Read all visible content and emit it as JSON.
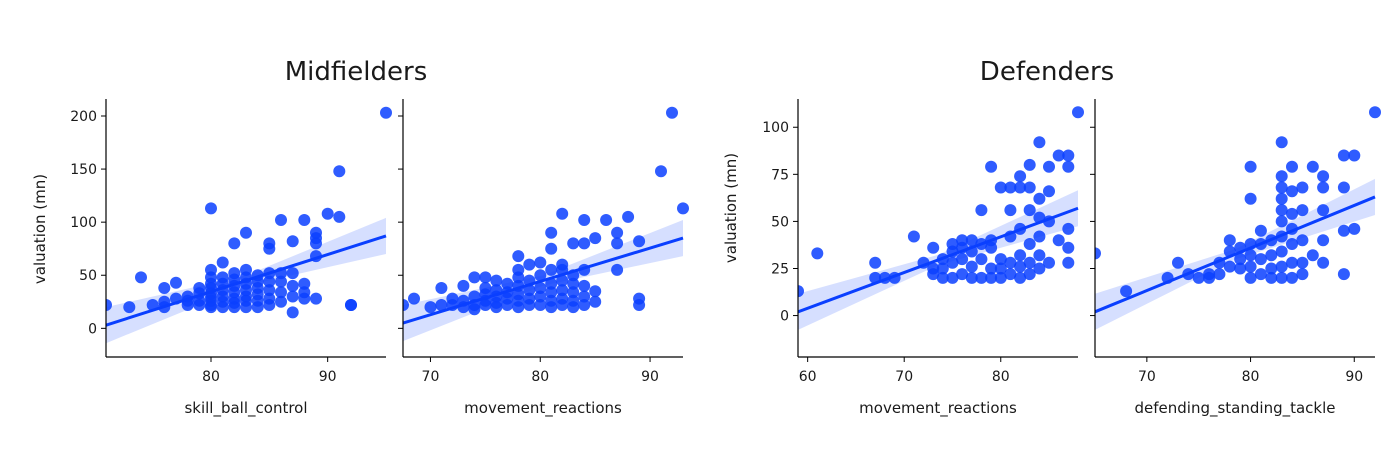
{
  "figure": {
    "groups": [
      {
        "title": "Midfielders",
        "ylabel": "valuation (mn)"
      },
      {
        "title": "Defenders",
        "ylabel": "valuation (mn)"
      }
    ]
  },
  "colors": {
    "point": "#0a3fff",
    "line": "#0a3fff",
    "band": "#c8d4ff"
  },
  "chart_data": [
    {
      "type": "scatter",
      "group": "Midfielders",
      "xlabel": "skill_ball_control",
      "ylabel": "valuation (mn)",
      "xlim": [
        71,
        95
      ],
      "ylim": [
        -27,
        216
      ],
      "xticks": [
        80,
        90
      ],
      "yticks": [
        0,
        50,
        100,
        150,
        200
      ],
      "regression": {
        "x": [
          71,
          95
        ],
        "y": [
          3,
          87
        ]
      },
      "points": [
        [
          71,
          22
        ],
        [
          73,
          20
        ],
        [
          74,
          48
        ],
        [
          75,
          22
        ],
        [
          76,
          20
        ],
        [
          76,
          25
        ],
        [
          76,
          38
        ],
        [
          77,
          28
        ],
        [
          77,
          43
        ],
        [
          78,
          22
        ],
        [
          78,
          26
        ],
        [
          78,
          30
        ],
        [
          79,
          22
        ],
        [
          79,
          26
        ],
        [
          79,
          33
        ],
        [
          79,
          38
        ],
        [
          80,
          20
        ],
        [
          80,
          22
        ],
        [
          80,
          26
        ],
        [
          80,
          29
        ],
        [
          80,
          33
        ],
        [
          80,
          38
        ],
        [
          80,
          42
        ],
        [
          80,
          48
        ],
        [
          80,
          55
        ],
        [
          80,
          113
        ],
        [
          81,
          20
        ],
        [
          81,
          25
        ],
        [
          81,
          30
        ],
        [
          81,
          36
        ],
        [
          81,
          42
        ],
        [
          81,
          48
        ],
        [
          81,
          62
        ],
        [
          82,
          20
        ],
        [
          82,
          24
        ],
        [
          82,
          28
        ],
        [
          82,
          34
        ],
        [
          82,
          40
        ],
        [
          82,
          46
        ],
        [
          82,
          52
        ],
        [
          82,
          80
        ],
        [
          83,
          20
        ],
        [
          83,
          26
        ],
        [
          83,
          30
        ],
        [
          83,
          36
        ],
        [
          83,
          42
        ],
        [
          83,
          48
        ],
        [
          83,
          55
        ],
        [
          83,
          90
        ],
        [
          84,
          20
        ],
        [
          84,
          26
        ],
        [
          84,
          32
        ],
        [
          84,
          38
        ],
        [
          84,
          44
        ],
        [
          84,
          50
        ],
        [
          85,
          22
        ],
        [
          85,
          28
        ],
        [
          85,
          36
        ],
        [
          85,
          44
        ],
        [
          85,
          52
        ],
        [
          85,
          75
        ],
        [
          85,
          80
        ],
        [
          86,
          25
        ],
        [
          86,
          34
        ],
        [
          86,
          44
        ],
        [
          86,
          52
        ],
        [
          86,
          102
        ],
        [
          87,
          15
        ],
        [
          87,
          30
        ],
        [
          87,
          40
        ],
        [
          87,
          52
        ],
        [
          87,
          82
        ],
        [
          88,
          28
        ],
        [
          88,
          34
        ],
        [
          88,
          42
        ],
        [
          88,
          102
        ],
        [
          89,
          28
        ],
        [
          89,
          68
        ],
        [
          89,
          80
        ],
        [
          89,
          85
        ],
        [
          89,
          90
        ],
        [
          90,
          108
        ],
        [
          91,
          105
        ],
        [
          91,
          148
        ],
        [
          92,
          22
        ],
        [
          92,
          22
        ],
        [
          95,
          203
        ]
      ]
    },
    {
      "type": "scatter",
      "group": "Midfielders",
      "xlabel": "movement_reactions",
      "ylabel": "",
      "xlim": [
        67.5,
        93
      ],
      "ylim": [
        -27,
        216
      ],
      "xticks": [
        70,
        80,
        90
      ],
      "yticks": [
        0,
        50,
        100,
        150,
        200
      ],
      "regression": {
        "x": [
          67.5,
          93
        ],
        "y": [
          5,
          85
        ]
      },
      "points": [
        [
          67.5,
          22
        ],
        [
          68.5,
          28
        ],
        [
          70,
          20
        ],
        [
          71,
          38
        ],
        [
          71,
          22
        ],
        [
          72,
          22
        ],
        [
          72,
          28
        ],
        [
          73,
          20
        ],
        [
          73,
          26
        ],
        [
          73,
          40
        ],
        [
          74,
          18
        ],
        [
          74,
          22
        ],
        [
          74,
          30
        ],
        [
          74,
          48
        ],
        [
          75,
          22
        ],
        [
          75,
          26
        ],
        [
          75,
          32
        ],
        [
          75,
          38
        ],
        [
          75,
          48
        ],
        [
          76,
          20
        ],
        [
          76,
          24
        ],
        [
          76,
          30
        ],
        [
          76,
          36
        ],
        [
          76,
          45
        ],
        [
          77,
          22
        ],
        [
          77,
          28
        ],
        [
          77,
          34
        ],
        [
          77,
          42
        ],
        [
          78,
          20
        ],
        [
          78,
          26
        ],
        [
          78,
          32
        ],
        [
          78,
          40
        ],
        [
          78,
          48
        ],
        [
          78,
          55
        ],
        [
          78,
          68
        ],
        [
          79,
          22
        ],
        [
          79,
          28
        ],
        [
          79,
          36
        ],
        [
          79,
          45
        ],
        [
          79,
          60
        ],
        [
          80,
          22
        ],
        [
          80,
          30
        ],
        [
          80,
          38
        ],
        [
          80,
          50
        ],
        [
          80,
          62
        ],
        [
          81,
          20
        ],
        [
          81,
          26
        ],
        [
          81,
          34
        ],
        [
          81,
          42
        ],
        [
          81,
          55
        ],
        [
          81,
          75
        ],
        [
          81,
          90
        ],
        [
          82,
          22
        ],
        [
          82,
          28
        ],
        [
          82,
          36
        ],
        [
          82,
          45
        ],
        [
          82,
          55
        ],
        [
          82,
          60
        ],
        [
          82,
          108
        ],
        [
          83,
          20
        ],
        [
          83,
          26
        ],
        [
          83,
          34
        ],
        [
          83,
          42
        ],
        [
          83,
          50
        ],
        [
          83,
          80
        ],
        [
          84,
          22
        ],
        [
          84,
          30
        ],
        [
          84,
          40
        ],
        [
          84,
          55
        ],
        [
          84,
          80
        ],
        [
          84,
          102
        ],
        [
          85,
          25
        ],
        [
          85,
          35
        ],
        [
          85,
          85
        ],
        [
          86,
          102
        ],
        [
          87,
          55
        ],
        [
          87,
          80
        ],
        [
          87,
          90
        ],
        [
          88,
          105
        ],
        [
          89,
          22
        ],
        [
          89,
          28
        ],
        [
          89,
          82
        ],
        [
          91,
          148
        ],
        [
          92,
          203
        ],
        [
          93,
          113
        ]
      ]
    },
    {
      "type": "scatter",
      "group": "Defenders",
      "xlabel": "movement_reactions",
      "ylabel": "valuation (mn)",
      "xlim": [
        59,
        88
      ],
      "ylim": [
        -22,
        115
      ],
      "xticks": [
        60,
        70,
        80
      ],
      "yticks": [
        0,
        25,
        50,
        75,
        100
      ],
      "regression": {
        "x": [
          59,
          88
        ],
        "y": [
          2,
          57
        ]
      },
      "points": [
        [
          59,
          13
        ],
        [
          61,
          33
        ],
        [
          67,
          28
        ],
        [
          67,
          20
        ],
        [
          68,
          20
        ],
        [
          69,
          20
        ],
        [
          71,
          42
        ],
        [
          72,
          28
        ],
        [
          73,
          22
        ],
        [
          73,
          25
        ],
        [
          73,
          36
        ],
        [
          74,
          20
        ],
        [
          74,
          25
        ],
        [
          74,
          30
        ],
        [
          75,
          20
        ],
        [
          75,
          28
        ],
        [
          75,
          34
        ],
        [
          75,
          38
        ],
        [
          76,
          22
        ],
        [
          76,
          30
        ],
        [
          76,
          36
        ],
        [
          76,
          40
        ],
        [
          77,
          20
        ],
        [
          77,
          26
        ],
        [
          77,
          34
        ],
        [
          77,
          40
        ],
        [
          78,
          20
        ],
        [
          78,
          30
        ],
        [
          78,
          38
        ],
        [
          78,
          56
        ],
        [
          79,
          20
        ],
        [
          79,
          25
        ],
        [
          79,
          36
        ],
        [
          79,
          40
        ],
        [
          79,
          79
        ],
        [
          80,
          20
        ],
        [
          80,
          25
        ],
        [
          80,
          30
        ],
        [
          80,
          68
        ],
        [
          81,
          22
        ],
        [
          81,
          28
        ],
        [
          81,
          42
        ],
        [
          81,
          56
        ],
        [
          81,
          68
        ],
        [
          82,
          20
        ],
        [
          82,
          26
        ],
        [
          82,
          32
        ],
        [
          82,
          46
        ],
        [
          82,
          68
        ],
        [
          82,
          74
        ],
        [
          83,
          22
        ],
        [
          83,
          28
        ],
        [
          83,
          38
        ],
        [
          83,
          56
        ],
        [
          83,
          68
        ],
        [
          83,
          80
        ],
        [
          84,
          25
        ],
        [
          84,
          32
        ],
        [
          84,
          42
        ],
        [
          84,
          52
        ],
        [
          84,
          62
        ],
        [
          84,
          92
        ],
        [
          85,
          28
        ],
        [
          85,
          50
        ],
        [
          85,
          66
        ],
        [
          85,
          79
        ],
        [
          86,
          40
        ],
        [
          86,
          85
        ],
        [
          87,
          28
        ],
        [
          87,
          36
        ],
        [
          87,
          46
        ],
        [
          87,
          79
        ],
        [
          87,
          85
        ],
        [
          88,
          108
        ]
      ]
    },
    {
      "type": "scatter",
      "group": "Defenders",
      "xlabel": "defending_standing_tackle",
      "ylabel": "",
      "xlim": [
        65,
        92
      ],
      "ylim": [
        -22,
        115
      ],
      "xticks": [
        70,
        80,
        90
      ],
      "yticks": [
        0,
        25,
        50,
        75,
        100
      ],
      "regression": {
        "x": [
          65,
          92
        ],
        "y": [
          2,
          63
        ]
      },
      "points": [
        [
          65,
          33
        ],
        [
          68,
          13
        ],
        [
          72,
          20
        ],
        [
          73,
          28
        ],
        [
          74,
          22
        ],
        [
          75,
          20
        ],
        [
          76,
          20
        ],
        [
          76,
          22
        ],
        [
          77,
          22
        ],
        [
          77,
          28
        ],
        [
          78,
          26
        ],
        [
          78,
          34
        ],
        [
          78,
          40
        ],
        [
          79,
          25
        ],
        [
          79,
          30
        ],
        [
          79,
          36
        ],
        [
          80,
          20
        ],
        [
          80,
          26
        ],
        [
          80,
          32
        ],
        [
          80,
          38
        ],
        [
          80,
          62
        ],
        [
          80,
          79
        ],
        [
          81,
          22
        ],
        [
          81,
          30
        ],
        [
          81,
          38
        ],
        [
          81,
          45
        ],
        [
          82,
          20
        ],
        [
          82,
          25
        ],
        [
          82,
          32
        ],
        [
          82,
          40
        ],
        [
          83,
          20
        ],
        [
          83,
          26
        ],
        [
          83,
          34
        ],
        [
          83,
          42
        ],
        [
          83,
          50
        ],
        [
          83,
          56
        ],
        [
          83,
          62
        ],
        [
          83,
          68
        ],
        [
          83,
          74
        ],
        [
          83,
          92
        ],
        [
          84,
          20
        ],
        [
          84,
          28
        ],
        [
          84,
          38
        ],
        [
          84,
          46
        ],
        [
          84,
          54
        ],
        [
          84,
          66
        ],
        [
          84,
          79
        ],
        [
          85,
          22
        ],
        [
          85,
          28
        ],
        [
          85,
          40
        ],
        [
          85,
          56
        ],
        [
          85,
          68
        ],
        [
          86,
          32
        ],
        [
          86,
          79
        ],
        [
          87,
          28
        ],
        [
          87,
          40
        ],
        [
          87,
          56
        ],
        [
          87,
          68
        ],
        [
          87,
          74
        ],
        [
          89,
          22
        ],
        [
          89,
          45
        ],
        [
          89,
          68
        ],
        [
          89,
          85
        ],
        [
          90,
          46
        ],
        [
          90,
          85
        ],
        [
          92,
          108
        ]
      ]
    }
  ]
}
